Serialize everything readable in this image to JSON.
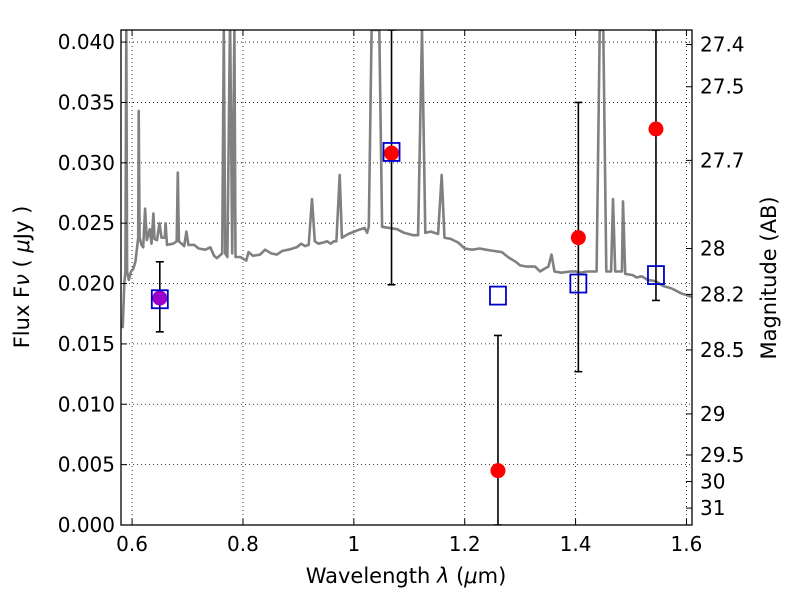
{
  "chart_data": {
    "type": "scatter",
    "title": "",
    "xlabel": "Wavelength  λ (μm)",
    "ylabel": "Flux  Fν  ( μJy )",
    "ylabel_right": "Magnitude (AB)",
    "xlim": [
      0.58,
      1.61
    ],
    "ylim": [
      0.0,
      0.041
    ],
    "grid": true,
    "x_ticks": [
      0.6,
      0.8,
      1.0,
      1.2,
      1.4,
      1.6
    ],
    "x_tick_labels": [
      "0.6",
      "0.8",
      "1",
      "1.2",
      "1.4",
      "1.6"
    ],
    "y_ticks": [
      0.0,
      0.005,
      0.01,
      0.015,
      0.02,
      0.025,
      0.03,
      0.035,
      0.04
    ],
    "y_tick_labels": [
      "0.000",
      "0.005",
      "0.010",
      "0.015",
      "0.020",
      "0.025",
      "0.030",
      "0.035",
      "0.040"
    ],
    "right_ticks": [
      {
        "label": "27.4",
        "flux": 0.0398
      },
      {
        "label": "27.5",
        "flux": 0.0363
      },
      {
        "label": "27.7",
        "flux": 0.0302
      },
      {
        "label": "28",
        "flux": 0.0229
      },
      {
        "label": "28.2",
        "flux": 0.0191
      },
      {
        "label": "28.5",
        "flux": 0.0145
      },
      {
        "label": "29",
        "flux": 0.0092
      },
      {
        "label": "29.5",
        "flux": 0.0058
      },
      {
        "label": "30",
        "flux": 0.0036
      },
      {
        "label": "31",
        "flux": 0.0014
      }
    ],
    "series": [
      {
        "kind": "spectrum",
        "color": "#808080",
        "points": [
          [
            0.583,
            0.0163
          ],
          [
            0.586,
            0.02
          ],
          [
            0.588,
            0.021
          ],
          [
            0.5895,
            0.041
          ],
          [
            0.591,
            0.021
          ],
          [
            0.594,
            0.0203
          ],
          [
            0.598,
            0.021
          ],
          [
            0.602,
            0.0212
          ],
          [
            0.606,
            0.0218
          ],
          [
            0.609,
            0.023
          ],
          [
            0.611,
            0.0238
          ],
          [
            0.612,
            0.0343
          ],
          [
            0.6135,
            0.0238
          ],
          [
            0.617,
            0.0232
          ],
          [
            0.62,
            0.023
          ],
          [
            0.6235,
            0.0262
          ],
          [
            0.6265,
            0.0236
          ],
          [
            0.632,
            0.0245
          ],
          [
            0.635,
            0.0233
          ],
          [
            0.6385,
            0.0258
          ],
          [
            0.6405,
            0.0237
          ],
          [
            0.645,
            0.0236
          ],
          [
            0.6495,
            0.025
          ],
          [
            0.653,
            0.0238
          ],
          [
            0.659,
            0.0238
          ],
          [
            0.6605,
            0.025
          ],
          [
            0.663,
            0.0232
          ],
          [
            0.674,
            0.0233
          ],
          [
            0.6805,
            0.0235
          ],
          [
            0.6825,
            0.0292
          ],
          [
            0.6845,
            0.0235
          ],
          [
            0.694,
            0.0231
          ],
          [
            0.698,
            0.0243
          ],
          [
            0.7015,
            0.0232
          ],
          [
            0.705,
            0.0232
          ],
          [
            0.712,
            0.0232
          ],
          [
            0.72,
            0.0229
          ],
          [
            0.732,
            0.0228
          ],
          [
            0.741,
            0.023
          ],
          [
            0.748,
            0.0223
          ],
          [
            0.753,
            0.0221
          ],
          [
            0.7625,
            0.0225
          ],
          [
            0.7655,
            0.041
          ],
          [
            0.768,
            0.0225
          ],
          [
            0.772,
            0.0222
          ],
          [
            0.7765,
            0.041
          ],
          [
            0.777,
            0.041
          ],
          [
            0.7805,
            0.0225
          ],
          [
            0.7845,
            0.041
          ],
          [
            0.7865,
            0.0222
          ],
          [
            0.795,
            0.0222
          ],
          [
            0.806,
            0.0219
          ],
          [
            0.81,
            0.0226
          ],
          [
            0.818,
            0.0223
          ],
          [
            0.831,
            0.0224
          ],
          [
            0.84,
            0.0228
          ],
          [
            0.851,
            0.0225
          ],
          [
            0.861,
            0.0224
          ],
          [
            0.871,
            0.0227
          ],
          [
            0.882,
            0.0228
          ],
          [
            0.897,
            0.023
          ],
          [
            0.905,
            0.0233
          ],
          [
            0.912,
            0.0231
          ],
          [
            0.9185,
            0.0232
          ],
          [
            0.9245,
            0.027
          ],
          [
            0.9295,
            0.0235
          ],
          [
            0.936,
            0.0233
          ],
          [
            0.945,
            0.0234
          ],
          [
            0.952,
            0.0235
          ],
          [
            0.958,
            0.0233
          ],
          [
            0.964,
            0.0235
          ],
          [
            0.9685,
            0.0235
          ],
          [
            0.9745,
            0.029
          ],
          [
            0.9785,
            0.0238
          ],
          [
            0.99,
            0.0241
          ],
          [
            1.006,
            0.0244
          ],
          [
            1.0195,
            0.0246
          ],
          [
            1.024,
            0.0242
          ],
          [
            1.027,
            0.0247
          ],
          [
            1.032,
            0.041
          ],
          [
            1.046,
            0.041
          ],
          [
            1.051,
            0.0247
          ],
          [
            1.078,
            0.0245
          ],
          [
            1.0905,
            0.0242
          ],
          [
            1.107,
            0.024
          ],
          [
            1.116,
            0.024
          ],
          [
            1.123,
            0.041
          ],
          [
            1.129,
            0.0242
          ],
          [
            1.139,
            0.0243
          ],
          [
            1.152,
            0.0241
          ],
          [
            1.1585,
            0.029
          ],
          [
            1.1635,
            0.0238
          ],
          [
            1.175,
            0.0237
          ],
          [
            1.188,
            0.0234
          ],
          [
            1.2,
            0.0229
          ],
          [
            1.213,
            0.0228
          ],
          [
            1.227,
            0.0229
          ],
          [
            1.238,
            0.0228
          ],
          [
            1.252,
            0.0227
          ],
          [
            1.267,
            0.0226
          ],
          [
            1.278,
            0.0222
          ],
          [
            1.292,
            0.0218
          ],
          [
            1.3,
            0.0215
          ],
          [
            1.312,
            0.0214
          ],
          [
            1.327,
            0.0214
          ],
          [
            1.336,
            0.021
          ],
          [
            1.343,
            0.0212
          ],
          [
            1.351,
            0.0214
          ],
          [
            1.3565,
            0.0224
          ],
          [
            1.362,
            0.021
          ],
          [
            1.374,
            0.0209
          ],
          [
            1.39,
            0.021
          ],
          [
            1.4,
            0.021
          ],
          [
            1.409,
            0.0209
          ],
          [
            1.42,
            0.021
          ],
          [
            1.43,
            0.021
          ],
          [
            1.438,
            0.021
          ],
          [
            1.4435,
            0.041
          ],
          [
            1.45,
            0.041
          ],
          [
            1.4555,
            0.021
          ],
          [
            1.464,
            0.021
          ],
          [
            1.4675,
            0.027
          ],
          [
            1.4715,
            0.021
          ],
          [
            1.4835,
            0.021
          ],
          [
            1.4855,
            0.0268
          ],
          [
            1.4895,
            0.0208
          ],
          [
            1.503,
            0.0207
          ],
          [
            1.51,
            0.0205
          ],
          [
            1.519,
            0.0206
          ],
          [
            1.53,
            0.0203
          ],
          [
            1.544,
            0.0202
          ],
          [
            1.558,
            0.0198
          ],
          [
            1.573,
            0.0196
          ],
          [
            1.59,
            0.0192
          ],
          [
            1.609,
            0.0189
          ]
        ]
      },
      {
        "kind": "measured",
        "marker": "circle",
        "color": "#ff0000",
        "points": [
          {
            "x": 1.068,
            "y": 0.0308,
            "yerr_low": 0.0199,
            "yerr_high": 0.041
          },
          {
            "x": 1.26,
            "y": 0.0045,
            "yerr_low": 0.0,
            "yerr_high": 0.0157
          },
          {
            "x": 1.405,
            "y": 0.0238,
            "yerr_low": 0.0127,
            "yerr_high": 0.035
          },
          {
            "x": 1.545,
            "y": 0.0328,
            "yerr_low": 0.0186,
            "yerr_high": 0.041
          }
        ]
      },
      {
        "kind": "measured",
        "marker": "circle",
        "color": "#9b00cc",
        "points": [
          {
            "x": 0.65,
            "y": 0.0188,
            "yerr_low": 0.016,
            "yerr_high": 0.0218
          }
        ]
      },
      {
        "kind": "model",
        "marker": "square",
        "color": "#0000cc",
        "points": [
          {
            "x": 0.65,
            "y": 0.0187
          },
          {
            "x": 1.068,
            "y": 0.0309
          },
          {
            "x": 1.26,
            "y": 0.019
          },
          {
            "x": 1.405,
            "y": 0.02
          },
          {
            "x": 1.545,
            "y": 0.0207
          }
        ]
      }
    ]
  }
}
